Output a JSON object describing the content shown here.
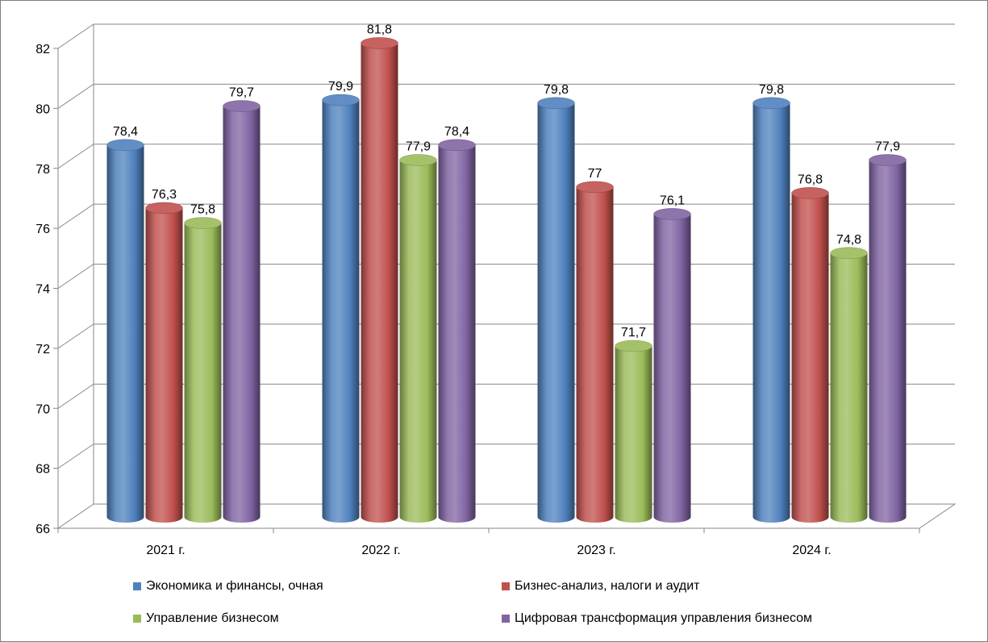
{
  "chart_data": {
    "type": "bar",
    "categories": [
      "2021 г.",
      "2022 г.",
      "2023 г.",
      "2024 г."
    ],
    "series": [
      {
        "name": "Экономика и финансы, очная",
        "color": "#4f81bd",
        "values": [
          78.4,
          79.9,
          79.8,
          79.8
        ],
        "labels": [
          "78,4",
          "79,9",
          "79,8",
          "79,8"
        ]
      },
      {
        "name": "Бизнес-анализ, налоги и аудит",
        "color": "#c0504d",
        "values": [
          76.3,
          81.8,
          77,
          76.8
        ],
        "labels": [
          "76,3",
          "81,8",
          "77",
          "76,8"
        ]
      },
      {
        "name": "Управление бизнесом",
        "color": "#9bbb59",
        "values": [
          75.8,
          77.9,
          71.7,
          74.8
        ],
        "labels": [
          "75,8",
          "77,9",
          "71,7",
          "74,8"
        ]
      },
      {
        "name": "Цифровая трансформация управления бизнесом",
        "color": "#8064a2",
        "values": [
          79.7,
          78.4,
          76.1,
          77.9
        ],
        "labels": [
          "79,7",
          "78,4",
          "76,1",
          "77,9"
        ]
      }
    ],
    "ylim": [
      66,
      82
    ],
    "yticks": [
      66,
      68,
      70,
      72,
      74,
      76,
      78,
      80,
      82
    ],
    "grid": true,
    "legend_position": "bottom",
    "title": "",
    "xlabel": "",
    "ylabel": ""
  }
}
